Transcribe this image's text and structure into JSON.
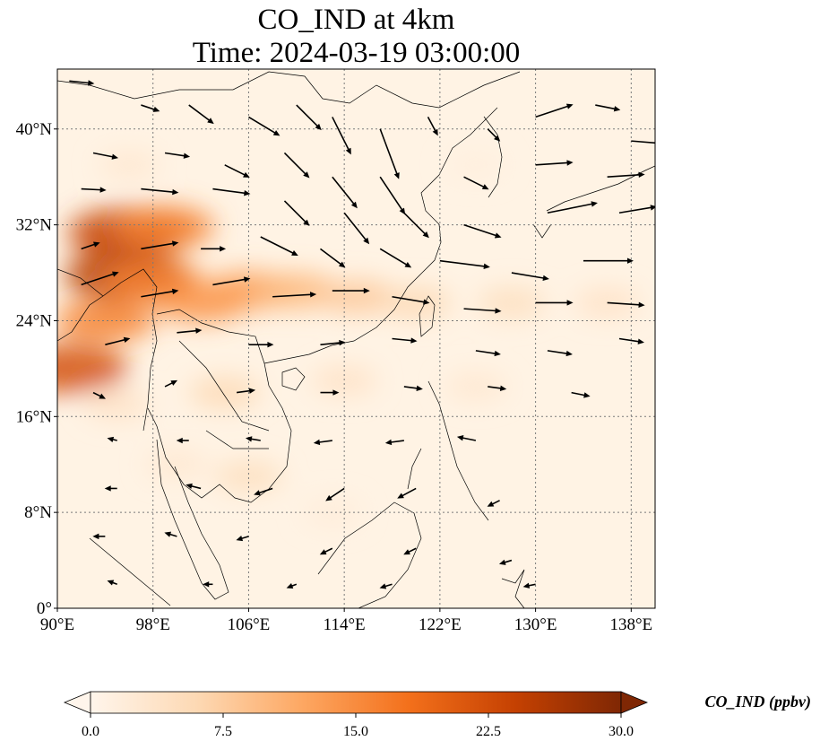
{
  "title": {
    "line1": "CO_IND at 4km",
    "line2": "Time: 2024-03-19 03:00:00"
  },
  "map": {
    "lon_range": [
      90,
      140
    ],
    "lat_range": [
      0,
      45
    ],
    "gridlines": true,
    "lon_ticks": [
      {
        "value": 90,
        "label": "90°E"
      },
      {
        "value": 98,
        "label": "98°E"
      },
      {
        "value": 106,
        "label": "106°E"
      },
      {
        "value": 114,
        "label": "114°E"
      },
      {
        "value": 122,
        "label": "122°E"
      },
      {
        "value": 130,
        "label": "130°E"
      },
      {
        "value": 138,
        "label": "138°E"
      }
    ],
    "lat_ticks": [
      {
        "value": 0,
        "label": "0°"
      },
      {
        "value": 8,
        "label": "8°N"
      },
      {
        "value": 16,
        "label": "16°N"
      },
      {
        "value": 24,
        "label": "24°N"
      },
      {
        "value": 32,
        "label": "32°N"
      },
      {
        "value": 40,
        "label": "40°N"
      }
    ]
  },
  "colorbar": {
    "label": "CO_IND (ppbv)",
    "min": 0,
    "max": 30,
    "colors": [
      "#fff5eb",
      "#fdd9b4",
      "#fda762",
      "#f3701b",
      "#c54102",
      "#7f2704"
    ],
    "ticks": [
      {
        "value": 0,
        "label": "0.0"
      },
      {
        "value": 7.5,
        "label": "7.5"
      },
      {
        "value": 15,
        "label": "15.0"
      },
      {
        "value": 22.5,
        "label": "22.5"
      },
      {
        "value": 30,
        "label": "30.0"
      }
    ],
    "extend": "both"
  },
  "chart_data": {
    "type": "heatmap",
    "variable": "CO_IND",
    "unit": "ppbv",
    "vmin": 0,
    "vmax": 30,
    "plumes": [
      {
        "lon": 91,
        "lat": 20,
        "value": 22
      },
      {
        "lon": 94,
        "lat": 24,
        "value": 16
      },
      {
        "lon": 96,
        "lat": 31.3,
        "value": 24
      },
      {
        "lon": 99,
        "lat": 31.8,
        "value": 16
      },
      {
        "lon": 95.8,
        "lat": 27.8,
        "value": 25
      },
      {
        "lon": 98,
        "lat": 27.3,
        "value": 16
      },
      {
        "lon": 102,
        "lat": 25.5,
        "value": 14
      },
      {
        "lon": 106,
        "lat": 26.5,
        "value": 13
      },
      {
        "lon": 110,
        "lat": 26.5,
        "value": 10
      },
      {
        "lon": 115,
        "lat": 26,
        "value": 8
      },
      {
        "lon": 120,
        "lat": 25.5,
        "value": 6
      },
      {
        "lon": 128,
        "lat": 25.5,
        "value": 5
      },
      {
        "lon": 136,
        "lat": 25.5,
        "value": 4
      },
      {
        "lon": 104,
        "lat": 18,
        "value": 6
      },
      {
        "lon": 114,
        "lat": 19,
        "value": 4
      },
      {
        "lon": 125,
        "lat": 18.5,
        "value": 3
      },
      {
        "lon": 95,
        "lat": 17,
        "value": 4
      },
      {
        "lon": 100,
        "lat": 12,
        "value": 3
      },
      {
        "lon": 106,
        "lat": 11,
        "value": 5
      },
      {
        "lon": 113,
        "lat": 8,
        "value": 2
      },
      {
        "lon": 96,
        "lat": 37,
        "value": 3
      },
      {
        "lon": 125,
        "lat": 37,
        "value": 1.5
      }
    ],
    "wind_vectors": [
      {
        "lon": 91,
        "lat": 44,
        "u": 2,
        "v": -0.2
      },
      {
        "lon": 97,
        "lat": 42,
        "u": 1.5,
        "v": -0.5
      },
      {
        "lon": 101,
        "lat": 42,
        "u": 2,
        "v": -1.5
      },
      {
        "lon": 106,
        "lat": 41,
        "u": 2.5,
        "v": -1.5
      },
      {
        "lon": 110,
        "lat": 42,
        "u": 2,
        "v": -2
      },
      {
        "lon": 113,
        "lat": 41,
        "u": 1.5,
        "v": -3
      },
      {
        "lon": 117,
        "lat": 40,
        "u": 1.5,
        "v": -4
      },
      {
        "lon": 121,
        "lat": 41,
        "u": 0.8,
        "v": -1.5
      },
      {
        "lon": 126,
        "lat": 40,
        "u": 1,
        "v": -1
      },
      {
        "lon": 130,
        "lat": 41,
        "u": 3,
        "v": 1
      },
      {
        "lon": 135,
        "lat": 42,
        "u": 2,
        "v": -0.4
      },
      {
        "lon": 138,
        "lat": 39,
        "u": 2.5,
        "v": -0.2
      },
      {
        "lon": 93,
        "lat": 38,
        "u": 2,
        "v": -0.4
      },
      {
        "lon": 99,
        "lat": 38,
        "u": 2,
        "v": -0.3
      },
      {
        "lon": 104,
        "lat": 37,
        "u": 2,
        "v": -1
      },
      {
        "lon": 109,
        "lat": 38,
        "u": 2,
        "v": -2
      },
      {
        "lon": 113,
        "lat": 36,
        "u": 2,
        "v": -2.5
      },
      {
        "lon": 117,
        "lat": 36,
        "u": 2,
        "v": -3
      },
      {
        "lon": 124,
        "lat": 36,
        "u": 2,
        "v": -1
      },
      {
        "lon": 130,
        "lat": 37,
        "u": 3,
        "v": 0.2
      },
      {
        "lon": 136,
        "lat": 36,
        "u": 3,
        "v": 0.2
      },
      {
        "lon": 92,
        "lat": 35,
        "u": 2,
        "v": -0.1
      },
      {
        "lon": 97,
        "lat": 35,
        "u": 3,
        "v": -0.3
      },
      {
        "lon": 103,
        "lat": 35,
        "u": 3,
        "v": -0.4
      },
      {
        "lon": 109,
        "lat": 34,
        "u": 2,
        "v": -2
      },
      {
        "lon": 114,
        "lat": 33,
        "u": 2,
        "v": -2.5
      },
      {
        "lon": 119,
        "lat": 33,
        "u": 2,
        "v": -2
      },
      {
        "lon": 124,
        "lat": 32,
        "u": 3,
        "v": -1
      },
      {
        "lon": 131,
        "lat": 33,
        "u": 4,
        "v": 0.8
      },
      {
        "lon": 137,
        "lat": 33,
        "u": 3,
        "v": 0.5
      },
      {
        "lon": 92,
        "lat": 30,
        "u": 1.5,
        "v": 0.5
      },
      {
        "lon": 97,
        "lat": 30,
        "u": 3,
        "v": 0.5
      },
      {
        "lon": 102,
        "lat": 30,
        "u": 2,
        "v": 0
      },
      {
        "lon": 107,
        "lat": 31,
        "u": 3,
        "v": -1.5
      },
      {
        "lon": 112,
        "lat": 30,
        "u": 2,
        "v": -1.5
      },
      {
        "lon": 117,
        "lat": 30,
        "u": 2.5,
        "v": -1.5
      },
      {
        "lon": 122,
        "lat": 29,
        "u": 4,
        "v": -0.5
      },
      {
        "lon": 128,
        "lat": 28,
        "u": 3,
        "v": -0.5
      },
      {
        "lon": 134,
        "lat": 29,
        "u": 4,
        "v": 0
      },
      {
        "lon": 92,
        "lat": 27,
        "u": 3,
        "v": 1
      },
      {
        "lon": 97,
        "lat": 26,
        "u": 3,
        "v": 0.5
      },
      {
        "lon": 103,
        "lat": 27,
        "u": 3,
        "v": 0.5
      },
      {
        "lon": 108,
        "lat": 26,
        "u": 3.5,
        "v": 0.2
      },
      {
        "lon": 113,
        "lat": 26.5,
        "u": 3,
        "v": 0
      },
      {
        "lon": 118,
        "lat": 26,
        "u": 3,
        "v": -0.5
      },
      {
        "lon": 124,
        "lat": 25,
        "u": 3,
        "v": -0.2
      },
      {
        "lon": 130,
        "lat": 25.5,
        "u": 3,
        "v": 0
      },
      {
        "lon": 136,
        "lat": 25.5,
        "u": 3,
        "v": -0.2
      },
      {
        "lon": 94,
        "lat": 22,
        "u": 2,
        "v": 0.5
      },
      {
        "lon": 100,
        "lat": 23,
        "u": 2,
        "v": 0.2
      },
      {
        "lon": 106,
        "lat": 22,
        "u": 2,
        "v": 0
      },
      {
        "lon": 112,
        "lat": 22,
        "u": 2,
        "v": 0.2
      },
      {
        "lon": 118,
        "lat": 22.5,
        "u": 2,
        "v": -0.2
      },
      {
        "lon": 125,
        "lat": 21.5,
        "u": 2,
        "v": -0.3
      },
      {
        "lon": 131,
        "lat": 21.5,
        "u": 2,
        "v": -0.3
      },
      {
        "lon": 137,
        "lat": 22.5,
        "u": 2,
        "v": -0.3
      },
      {
        "lon": 93,
        "lat": 18,
        "u": 1,
        "v": -0.5
      },
      {
        "lon": 99,
        "lat": 18.5,
        "u": 1,
        "v": 0.5
      },
      {
        "lon": 105,
        "lat": 18,
        "u": 1.5,
        "v": 0.2
      },
      {
        "lon": 112,
        "lat": 18,
        "u": 1.5,
        "v": 0
      },
      {
        "lon": 119,
        "lat": 18.5,
        "u": 1.5,
        "v": -0.2
      },
      {
        "lon": 126,
        "lat": 18.5,
        "u": 1.5,
        "v": -0.2
      },
      {
        "lon": 133,
        "lat": 18,
        "u": 1.5,
        "v": -0.3
      },
      {
        "lon": 95,
        "lat": 14,
        "u": -0.8,
        "v": 0.2
      },
      {
        "lon": 101,
        "lat": 14,
        "u": -1,
        "v": 0
      },
      {
        "lon": 107,
        "lat": 14,
        "u": -1.2,
        "v": 0.2
      },
      {
        "lon": 113,
        "lat": 14,
        "u": -1.5,
        "v": -0.2
      },
      {
        "lon": 119,
        "lat": 14,
        "u": -1.5,
        "v": -0.2
      },
      {
        "lon": 125,
        "lat": 14,
        "u": -1.5,
        "v": 0.3
      },
      {
        "lon": 95,
        "lat": 10,
        "u": -1,
        "v": 0
      },
      {
        "lon": 102,
        "lat": 10,
        "u": -1.2,
        "v": 0.3
      },
      {
        "lon": 108,
        "lat": 10,
        "u": -1.5,
        "v": -0.5
      },
      {
        "lon": 114,
        "lat": 10,
        "u": -1.5,
        "v": -1
      },
      {
        "lon": 120,
        "lat": 10,
        "u": -1.5,
        "v": -0.8
      },
      {
        "lon": 127,
        "lat": 9,
        "u": -1,
        "v": -0.5
      },
      {
        "lon": 94,
        "lat": 6,
        "u": -1,
        "v": 0
      },
      {
        "lon": 100,
        "lat": 6,
        "u": -1,
        "v": 0.3
      },
      {
        "lon": 106,
        "lat": 6,
        "u": -1,
        "v": -0.3
      },
      {
        "lon": 113,
        "lat": 5,
        "u": -1,
        "v": -0.5
      },
      {
        "lon": 120,
        "lat": 5,
        "u": -1,
        "v": -0.5
      },
      {
        "lon": 128,
        "lat": 4,
        "u": -1,
        "v": -0.3
      },
      {
        "lon": 95,
        "lat": 2,
        "u": -0.8,
        "v": 0.3
      },
      {
        "lon": 103,
        "lat": 2,
        "u": -0.8,
        "v": 0
      },
      {
        "lon": 110,
        "lat": 2,
        "u": -0.8,
        "v": -0.3
      },
      {
        "lon": 118,
        "lat": 2,
        "u": -1,
        "v": -0.3
      },
      {
        "lon": 130,
        "lat": 2,
        "u": -1,
        "v": -0.2
      }
    ]
  }
}
